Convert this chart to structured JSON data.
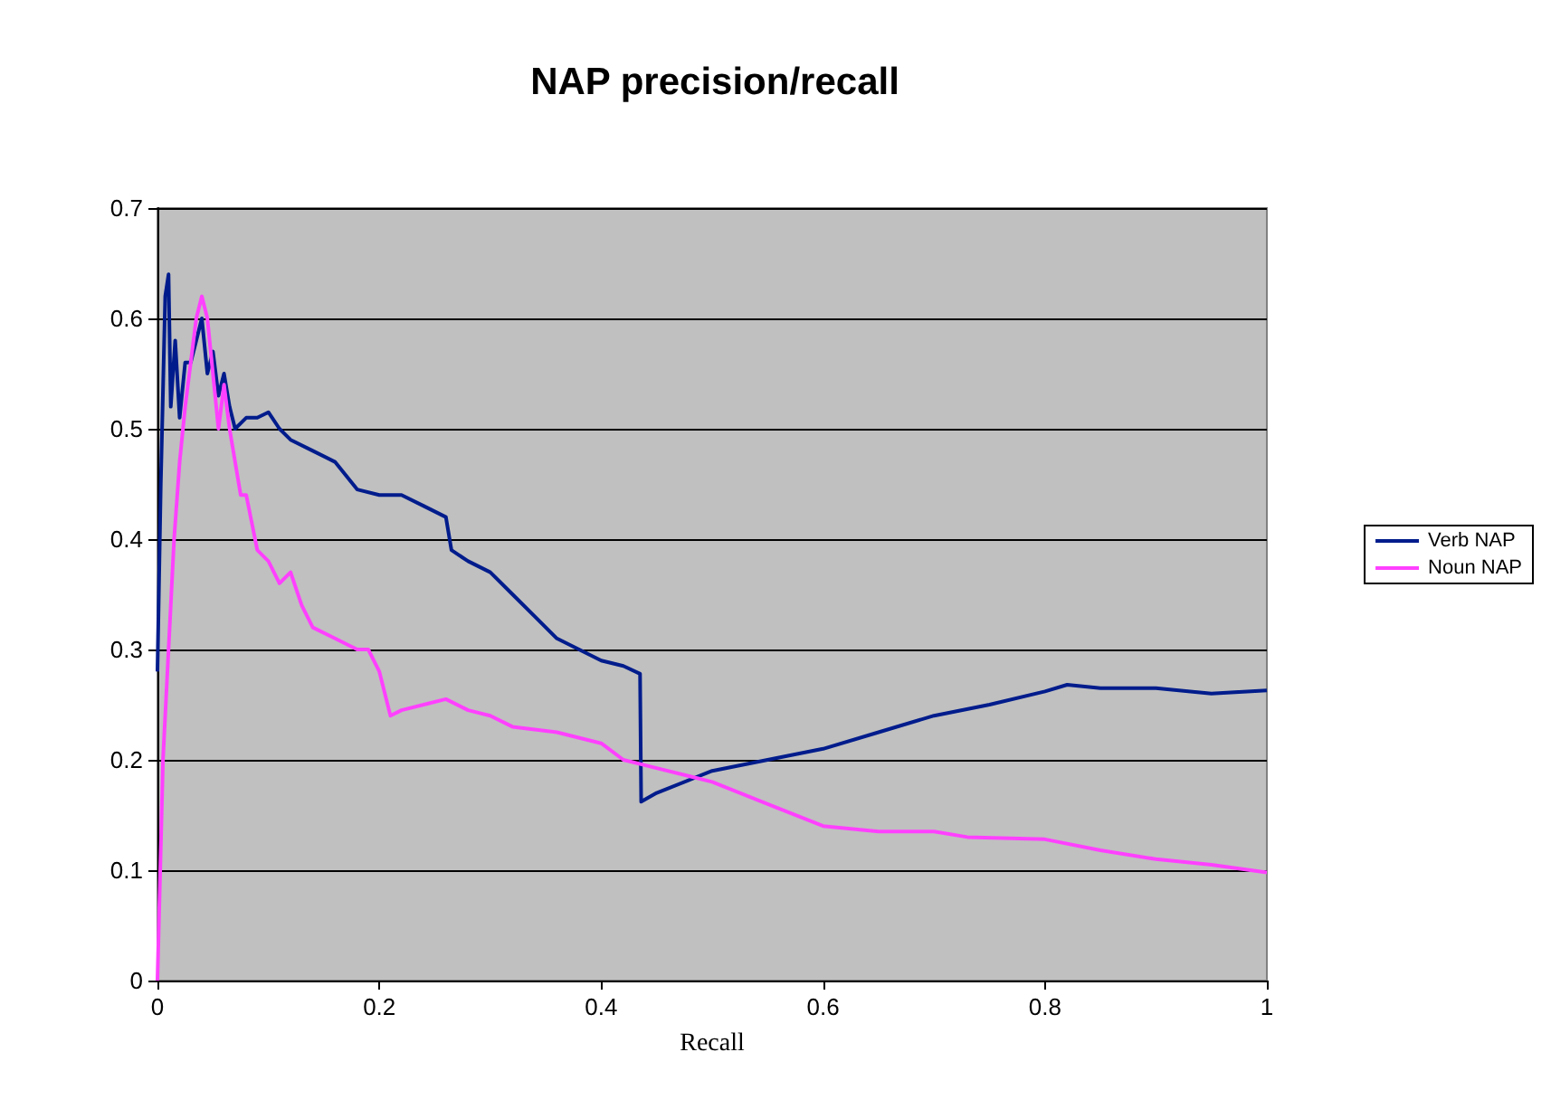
{
  "chart_data": {
    "type": "line",
    "title": "NAP precision/recall",
    "xlabel": "Recall",
    "xlim": [
      0,
      1
    ],
    "xticks": [
      0,
      0.2,
      0.4,
      0.6,
      0.8,
      1
    ],
    "ylim": [
      0,
      0.7
    ],
    "yticks": [
      0,
      0.1,
      0.2,
      0.3,
      0.4,
      0.5,
      0.6,
      0.7
    ],
    "grid": "y",
    "legend": "right",
    "marker": "none",
    "line_style": "solid",
    "series": [
      {
        "name": "Verb NAP",
        "color": "#001c8c",
        "x": [
          0,
          0.003,
          0.007,
          0.01,
          0.012,
          0.016,
          0.02,
          0.025,
          0.03,
          0.035,
          0.04,
          0.045,
          0.05,
          0.055,
          0.06,
          0.065,
          0.07,
          0.08,
          0.09,
          0.1,
          0.11,
          0.12,
          0.14,
          0.16,
          0.18,
          0.2,
          0.22,
          0.24,
          0.26,
          0.265,
          0.28,
          0.3,
          0.32,
          0.34,
          0.36,
          0.38,
          0.4,
          0.42,
          0.435,
          0.436,
          0.45,
          0.5,
          0.55,
          0.6,
          0.65,
          0.7,
          0.75,
          0.8,
          0.82,
          0.85,
          0.9,
          0.95,
          1
        ],
        "values": [
          0.28,
          0.45,
          0.62,
          0.64,
          0.52,
          0.58,
          0.51,
          0.56,
          0.56,
          0.58,
          0.6,
          0.55,
          0.57,
          0.53,
          0.55,
          0.52,
          0.5,
          0.51,
          0.51,
          0.515,
          0.5,
          0.49,
          0.48,
          0.47,
          0.445,
          0.44,
          0.44,
          0.43,
          0.42,
          0.39,
          0.38,
          0.37,
          0.35,
          0.33,
          0.31,
          0.3,
          0.29,
          0.285,
          0.278,
          0.162,
          0.17,
          0.19,
          0.2,
          0.21,
          0.225,
          0.24,
          0.25,
          0.262,
          0.268,
          0.265,
          0.265,
          0.26,
          0.263
        ]
      },
      {
        "name": "Noun NAP",
        "color": "#ff40ff",
        "x": [
          0,
          0.005,
          0.01,
          0.015,
          0.02,
          0.025,
          0.03,
          0.035,
          0.04,
          0.045,
          0.05,
          0.055,
          0.06,
          0.065,
          0.07,
          0.075,
          0.08,
          0.09,
          0.1,
          0.11,
          0.12,
          0.13,
          0.14,
          0.16,
          0.18,
          0.19,
          0.2,
          0.21,
          0.22,
          0.24,
          0.26,
          0.28,
          0.3,
          0.32,
          0.36,
          0.4,
          0.42,
          0.44,
          0.5,
          0.55,
          0.6,
          0.65,
          0.7,
          0.73,
          0.8,
          0.85,
          0.9,
          0.95,
          1
        ],
        "values": [
          0,
          0.2,
          0.3,
          0.4,
          0.47,
          0.52,
          0.56,
          0.6,
          0.62,
          0.6,
          0.55,
          0.5,
          0.54,
          0.5,
          0.47,
          0.44,
          0.44,
          0.39,
          0.38,
          0.36,
          0.37,
          0.34,
          0.32,
          0.31,
          0.3,
          0.3,
          0.28,
          0.24,
          0.245,
          0.25,
          0.255,
          0.245,
          0.24,
          0.23,
          0.225,
          0.215,
          0.2,
          0.195,
          0.18,
          0.16,
          0.14,
          0.135,
          0.135,
          0.13,
          0.128,
          0.118,
          0.11,
          0.105,
          0.098
        ]
      }
    ]
  }
}
